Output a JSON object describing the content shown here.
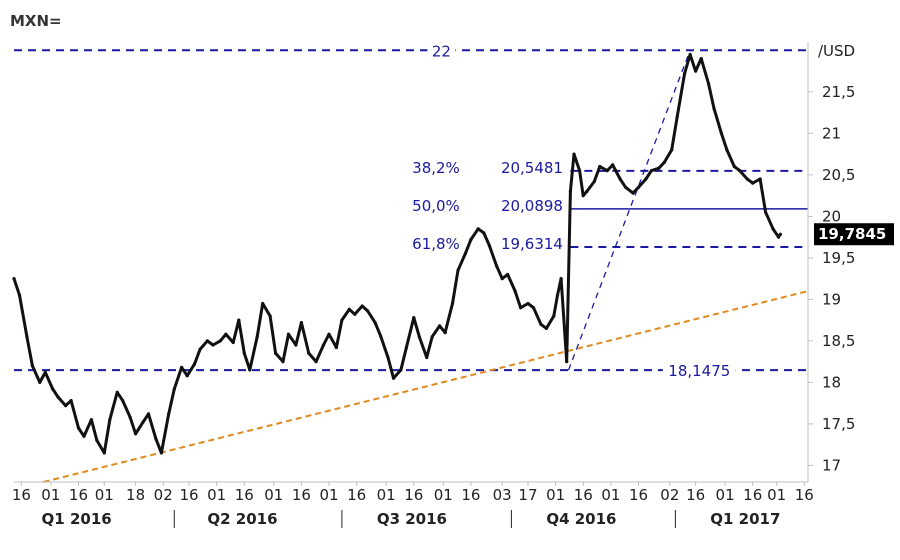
{
  "chart_data": {
    "type": "line",
    "title": "MXN=",
    "unit_label": "/USD",
    "ylim": [
      16.8,
      22.1
    ],
    "y_ticks": [
      {
        "value": 21.5,
        "label": "21,5"
      },
      {
        "value": 21,
        "label": "21"
      },
      {
        "value": 20.5,
        "label": "20,5"
      },
      {
        "value": 20,
        "label": "20"
      },
      {
        "value": 19.5,
        "label": "19,5"
      },
      {
        "value": 19,
        "label": "19"
      },
      {
        "value": 18.5,
        "label": "18,5"
      },
      {
        "value": 18,
        "label": "18"
      },
      {
        "value": 17.5,
        "label": "17,5"
      },
      {
        "value": 17,
        "label": "17"
      }
    ],
    "xlim": [
      "2016-01-12",
      "2017-03-18"
    ],
    "x_ticks": [
      {
        "date": "2016-01-16",
        "label": "16"
      },
      {
        "date": "2016-02-01",
        "label": "01"
      },
      {
        "date": "2016-02-16",
        "label": "16"
      },
      {
        "date": "2016-03-01",
        "label": "01"
      },
      {
        "date": "2016-03-18",
        "label": "18"
      },
      {
        "date": "2016-04-02",
        "label": "02"
      },
      {
        "date": "2016-04-16",
        "label": "16"
      },
      {
        "date": "2016-05-01",
        "label": "01"
      },
      {
        "date": "2016-05-16",
        "label": "16"
      },
      {
        "date": "2016-06-01",
        "label": "01"
      },
      {
        "date": "2016-06-16",
        "label": "16"
      },
      {
        "date": "2016-07-01",
        "label": "01"
      },
      {
        "date": "2016-07-16",
        "label": "16"
      },
      {
        "date": "2016-08-01",
        "label": "01"
      },
      {
        "date": "2016-08-16",
        "label": "16"
      },
      {
        "date": "2016-09-01",
        "label": "01"
      },
      {
        "date": "2016-09-16",
        "label": "16"
      },
      {
        "date": "2016-10-03",
        "label": "03"
      },
      {
        "date": "2016-10-17",
        "label": "17"
      },
      {
        "date": "2016-11-01",
        "label": "01"
      },
      {
        "date": "2016-11-16",
        "label": "16"
      },
      {
        "date": "2016-12-01",
        "label": "01"
      },
      {
        "date": "2016-12-16",
        "label": "16"
      },
      {
        "date": "2017-01-02",
        "label": "02"
      },
      {
        "date": "2017-01-16",
        "label": "16"
      },
      {
        "date": "2017-02-01",
        "label": "01"
      },
      {
        "date": "2017-02-16",
        "label": "16"
      },
      {
        "date": "2017-03-01",
        "label": "01"
      },
      {
        "date": "2017-03-16",
        "label": "16"
      }
    ],
    "quarters": [
      {
        "label": "Q1 2016",
        "center": "2016-02-15"
      },
      {
        "label": "Q2 2016",
        "center": "2016-05-15"
      },
      {
        "label": "Q3 2016",
        "center": "2016-08-15"
      },
      {
        "label": "Q4 2016",
        "center": "2016-11-15"
      },
      {
        "label": "Q1 2017",
        "center": "2017-02-12"
      }
    ],
    "quarter_separators": [
      "2016-04-08",
      "2016-07-08",
      "2016-10-08",
      "2017-01-05"
    ],
    "series": [
      {
        "points": [
          [
            "2016-01-12",
            19.25
          ],
          [
            "2016-01-15",
            19.05
          ],
          [
            "2016-01-19",
            18.55
          ],
          [
            "2016-01-22",
            18.2
          ],
          [
            "2016-01-26",
            18.0
          ],
          [
            "2016-01-29",
            18.12
          ],
          [
            "2016-02-02",
            17.92
          ],
          [
            "2016-02-05",
            17.82
          ],
          [
            "2016-02-09",
            17.72
          ],
          [
            "2016-02-12",
            17.78
          ],
          [
            "2016-02-16",
            17.45
          ],
          [
            "2016-02-19",
            17.35
          ],
          [
            "2016-02-23",
            17.55
          ],
          [
            "2016-02-26",
            17.3
          ],
          [
            "2016-03-01",
            17.15
          ],
          [
            "2016-03-04",
            17.55
          ],
          [
            "2016-03-08",
            17.88
          ],
          [
            "2016-03-11",
            17.78
          ],
          [
            "2016-03-15",
            17.58
          ],
          [
            "2016-03-18",
            17.38
          ],
          [
            "2016-03-22",
            17.52
          ],
          [
            "2016-03-25",
            17.62
          ],
          [
            "2016-03-29",
            17.32
          ],
          [
            "2016-04-01",
            17.15
          ],
          [
            "2016-04-05",
            17.62
          ],
          [
            "2016-04-08",
            17.92
          ],
          [
            "2016-04-12",
            18.18
          ],
          [
            "2016-04-15",
            18.08
          ],
          [
            "2016-04-19",
            18.22
          ],
          [
            "2016-04-22",
            18.4
          ],
          [
            "2016-04-26",
            18.5
          ],
          [
            "2016-04-29",
            18.45
          ],
          [
            "2016-05-03",
            18.5
          ],
          [
            "2016-05-06",
            18.58
          ],
          [
            "2016-05-10",
            18.48
          ],
          [
            "2016-05-13",
            18.75
          ],
          [
            "2016-05-16",
            18.35
          ],
          [
            "2016-05-19",
            18.15
          ],
          [
            "2016-05-23",
            18.55
          ],
          [
            "2016-05-26",
            18.95
          ],
          [
            "2016-05-30",
            18.8
          ],
          [
            "2016-06-02",
            18.35
          ],
          [
            "2016-06-06",
            18.25
          ],
          [
            "2016-06-09",
            18.58
          ],
          [
            "2016-06-13",
            18.45
          ],
          [
            "2016-06-16",
            18.72
          ],
          [
            "2016-06-20",
            18.35
          ],
          [
            "2016-06-24",
            18.25
          ],
          [
            "2016-06-28",
            18.45
          ],
          [
            "2016-07-01",
            18.58
          ],
          [
            "2016-07-05",
            18.42
          ],
          [
            "2016-07-08",
            18.75
          ],
          [
            "2016-07-12",
            18.88
          ],
          [
            "2016-07-15",
            18.82
          ],
          [
            "2016-07-19",
            18.92
          ],
          [
            "2016-07-22",
            18.86
          ],
          [
            "2016-07-26",
            18.72
          ],
          [
            "2016-07-29",
            18.56
          ],
          [
            "2016-08-02",
            18.3
          ],
          [
            "2016-08-05",
            18.05
          ],
          [
            "2016-08-09",
            18.15
          ],
          [
            "2016-08-12",
            18.42
          ],
          [
            "2016-08-16",
            18.78
          ],
          [
            "2016-08-19",
            18.55
          ],
          [
            "2016-08-23",
            18.3
          ],
          [
            "2016-08-26",
            18.55
          ],
          [
            "2016-08-30",
            18.68
          ],
          [
            "2016-09-02",
            18.6
          ],
          [
            "2016-09-06",
            18.95
          ],
          [
            "2016-09-09",
            19.35
          ],
          [
            "2016-09-13",
            19.55
          ],
          [
            "2016-09-16",
            19.72
          ],
          [
            "2016-09-20",
            19.85
          ],
          [
            "2016-09-23",
            19.8
          ],
          [
            "2016-09-26",
            19.65
          ],
          [
            "2016-09-30",
            19.4
          ],
          [
            "2016-10-03",
            19.25
          ],
          [
            "2016-10-06",
            19.3
          ],
          [
            "2016-10-10",
            19.1
          ],
          [
            "2016-10-13",
            18.9
          ],
          [
            "2016-10-17",
            18.95
          ],
          [
            "2016-10-20",
            18.9
          ],
          [
            "2016-10-24",
            18.7
          ],
          [
            "2016-10-27",
            18.65
          ],
          [
            "2016-10-31",
            18.8
          ],
          [
            "2016-11-02",
            19.05
          ],
          [
            "2016-11-04",
            19.25
          ],
          [
            "2016-11-07",
            18.25
          ],
          [
            "2016-11-09",
            20.3
          ],
          [
            "2016-11-11",
            20.75
          ],
          [
            "2016-11-14",
            20.55
          ],
          [
            "2016-11-16",
            20.25
          ],
          [
            "2016-11-18",
            20.3
          ],
          [
            "2016-11-22",
            20.42
          ],
          [
            "2016-11-25",
            20.6
          ],
          [
            "2016-11-29",
            20.55
          ],
          [
            "2016-12-02",
            20.62
          ],
          [
            "2016-12-06",
            20.45
          ],
          [
            "2016-12-09",
            20.35
          ],
          [
            "2016-12-13",
            20.28
          ],
          [
            "2016-12-16",
            20.35
          ],
          [
            "2016-12-20",
            20.45
          ],
          [
            "2016-12-23",
            20.55
          ],
          [
            "2016-12-27",
            20.58
          ],
          [
            "2016-12-30",
            20.65
          ],
          [
            "2017-01-03",
            20.8
          ],
          [
            "2017-01-06",
            21.2
          ],
          [
            "2017-01-10",
            21.72
          ],
          [
            "2017-01-13",
            21.95
          ],
          [
            "2017-01-16",
            21.75
          ],
          [
            "2017-01-19",
            21.9
          ],
          [
            "2017-01-23",
            21.6
          ],
          [
            "2017-01-26",
            21.3
          ],
          [
            "2017-01-30",
            21.0
          ],
          [
            "2017-02-02",
            20.8
          ],
          [
            "2017-02-06",
            20.6
          ],
          [
            "2017-02-09",
            20.55
          ],
          [
            "2017-02-13",
            20.45
          ],
          [
            "2017-02-16",
            20.4
          ],
          [
            "2017-02-20",
            20.45
          ],
          [
            "2017-02-23",
            20.05
          ],
          [
            "2017-02-27",
            19.85
          ],
          [
            "2017-03-02",
            19.75
          ],
          [
            "2017-03-03",
            19.7845
          ]
        ]
      }
    ],
    "horizontal_levels": [
      {
        "value": 22,
        "label": "22",
        "style": "dashed"
      },
      {
        "value": 20.5481,
        "label": "20,5481",
        "pct_label": "38,2%",
        "style": "dashed"
      },
      {
        "value": 20.0898,
        "label": "20,0898",
        "pct_label": "50,0%",
        "style": "solid"
      },
      {
        "value": 19.6314,
        "label": "19,6314",
        "pct_label": "61,8%",
        "style": "dashed"
      },
      {
        "value": 18.1475,
        "label": "18,1475",
        "style": "dashed"
      }
    ],
    "fib_diagonal": {
      "start": [
        "2016-11-08",
        18.1475
      ],
      "end": [
        "2017-01-13",
        22
      ]
    },
    "trend_line": {
      "start": [
        "2016-01-28",
        16.8
      ],
      "end": [
        "2017-03-18",
        19.1
      ]
    },
    "current_value": {
      "value": 19.7845,
      "label": "19,7845"
    },
    "colors": {
      "price": "#111111",
      "levels": "#1a1aa0",
      "trend": "#e08a1e",
      "current_box": "#000000"
    },
    "grid": false,
    "legend": "none"
  }
}
